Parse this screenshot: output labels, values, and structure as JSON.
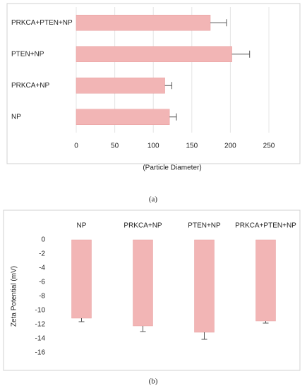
{
  "chart_data": [
    {
      "type": "hbar",
      "categories": [
        "PRKCA+PTEN+NP",
        "PTEN+NP",
        "PRKCA+NP",
        "NP"
      ],
      "values": [
        174,
        202,
        115,
        121
      ],
      "errors": [
        21,
        23,
        9,
        9
      ],
      "color": "#f2b5b5",
      "xlim": [
        0,
        250
      ],
      "xticks": [
        0,
        50,
        100,
        150,
        200,
        250
      ],
      "grid": true,
      "xlabel": "(Particle Diameter)",
      "caption": "(a)"
    },
    {
      "type": "bar",
      "categories": [
        "NP",
        "PRKCA+NP",
        "PTEN+NP",
        "PRKCA+PTEN+NP"
      ],
      "values": [
        -11.1,
        -12.2,
        -13.1,
        -11.5
      ],
      "errors": [
        0.5,
        0.8,
        1.0,
        0.3
      ],
      "color": "#f2b5b5",
      "ylim": [
        -16,
        0
      ],
      "yticks": [
        0,
        -2,
        -4,
        -6,
        -8,
        -10,
        -12,
        -14,
        -16
      ],
      "grid": false,
      "ylabel": "Zeta Potential (mV)",
      "caption": "(b)"
    }
  ]
}
